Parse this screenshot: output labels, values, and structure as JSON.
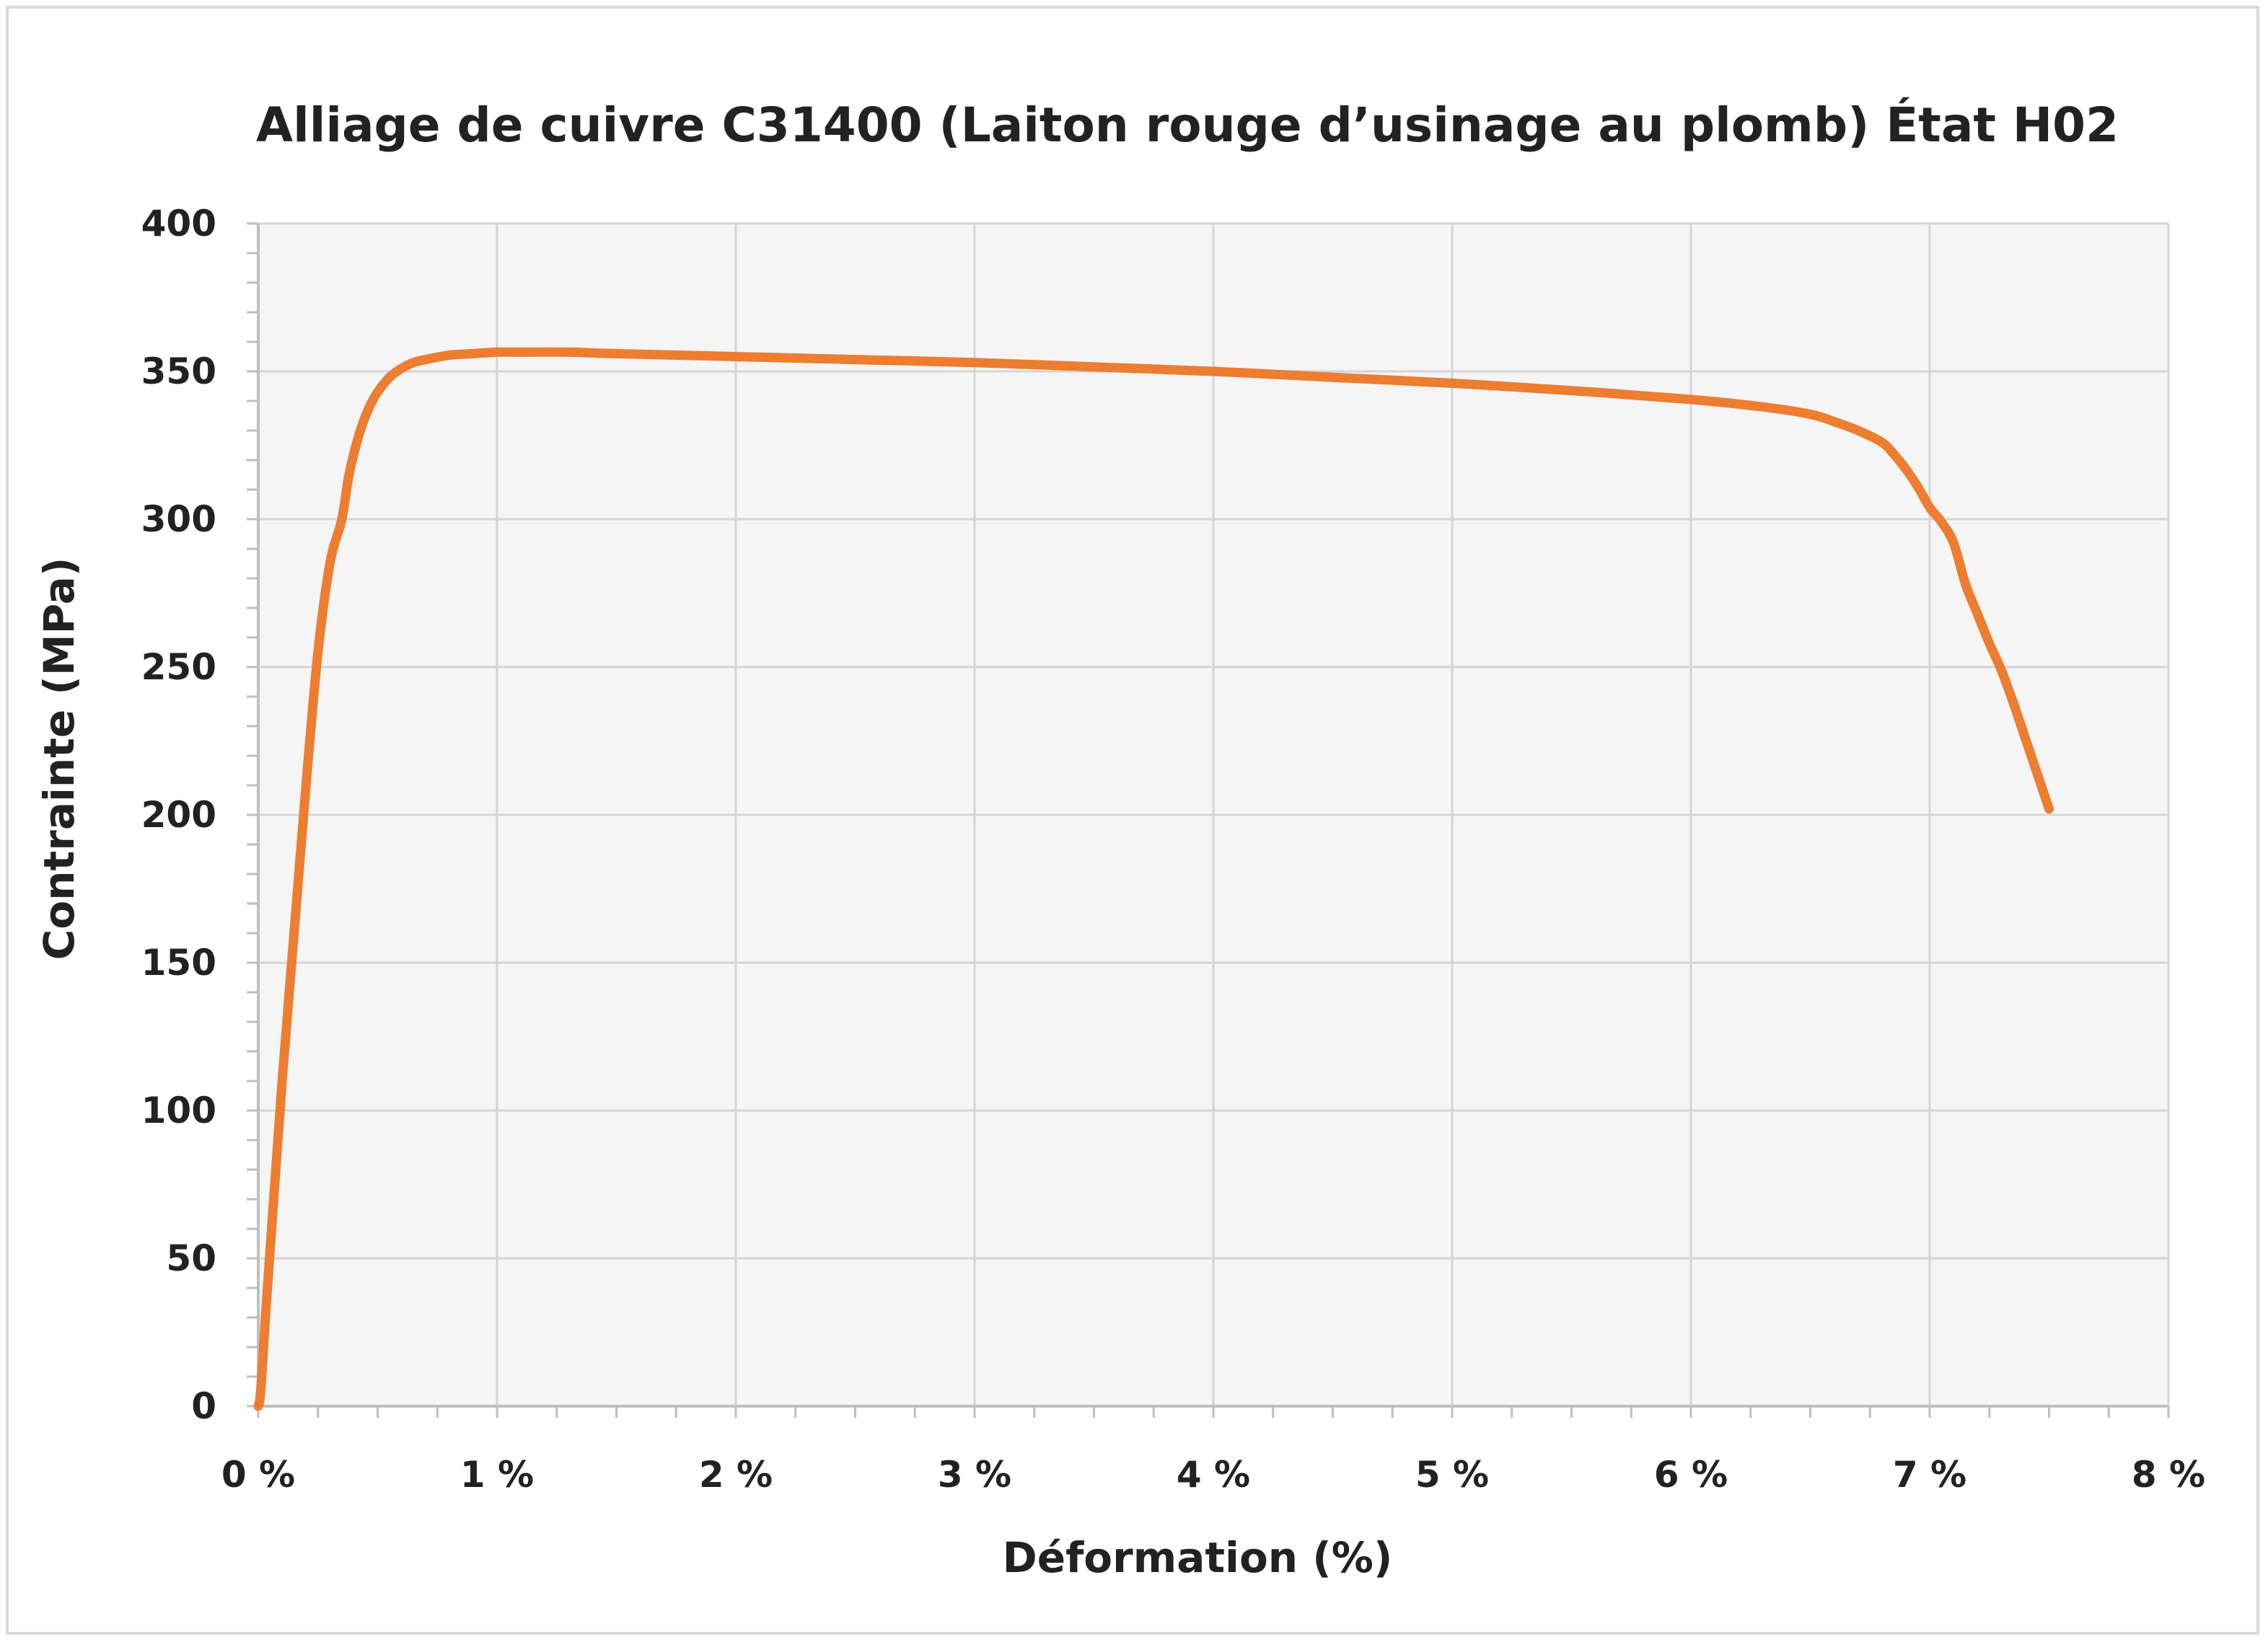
{
  "chart_data": {
    "type": "line",
    "title": "Alliage de cuivre C31400 (Laiton rouge d’usinage au plomb) État H02",
    "xlabel": "Déformation (%)",
    "ylabel": "Contrainte (MPa)",
    "xlim": [
      0,
      8
    ],
    "ylim": [
      0,
      400
    ],
    "x_ticks": [
      0,
      1,
      2,
      3,
      4,
      5,
      6,
      7,
      8
    ],
    "x_tick_labels": [
      "0 %",
      "1 %",
      "2 %",
      "3 %",
      "4 %",
      "5 %",
      "6 %",
      "7 %",
      "8 %"
    ],
    "y_ticks": [
      0,
      50,
      100,
      150,
      200,
      250,
      300,
      350,
      400
    ],
    "y_tick_labels": [
      "0",
      "50",
      "100",
      "150",
      "200",
      "250",
      "300",
      "350",
      "400"
    ],
    "grid": true,
    "legend": "none",
    "plot_background": "#f5f5f5",
    "series": [
      {
        "color": "#ed7d31",
        "x": [
          0.0,
          0.01,
          0.03,
          0.06,
          0.1,
          0.15,
          0.2,
          0.25,
          0.3,
          0.35,
          0.38,
          0.42,
          0.46,
          0.5,
          0.55,
          0.6,
          0.65,
          0.7,
          0.8,
          0.9,
          1.0,
          1.1,
          1.3,
          1.5,
          2.0,
          2.5,
          3.0,
          3.5,
          4.0,
          4.5,
          5.0,
          5.5,
          6.0,
          6.3,
          6.5,
          6.6,
          6.7,
          6.8,
          6.85,
          6.9,
          6.95,
          7.0,
          7.05,
          7.1,
          7.15,
          7.2,
          7.25,
          7.3,
          7.35,
          7.4,
          7.45,
          7.5
        ],
        "y": [
          0,
          5,
          30,
          65,
          110,
          160,
          210,
          255,
          285,
          300,
          315,
          328,
          337,
          343,
          348,
          351,
          353,
          354,
          355.5,
          356,
          356.5,
          356.5,
          356.5,
          356,
          355,
          354,
          353,
          351.5,
          350,
          348,
          346,
          343.5,
          340.5,
          338,
          335.5,
          333,
          330,
          326,
          322,
          317,
          311,
          304,
          299,
          292,
          278,
          268,
          258,
          249,
          238,
          226,
          214,
          202
        ]
      }
    ]
  }
}
